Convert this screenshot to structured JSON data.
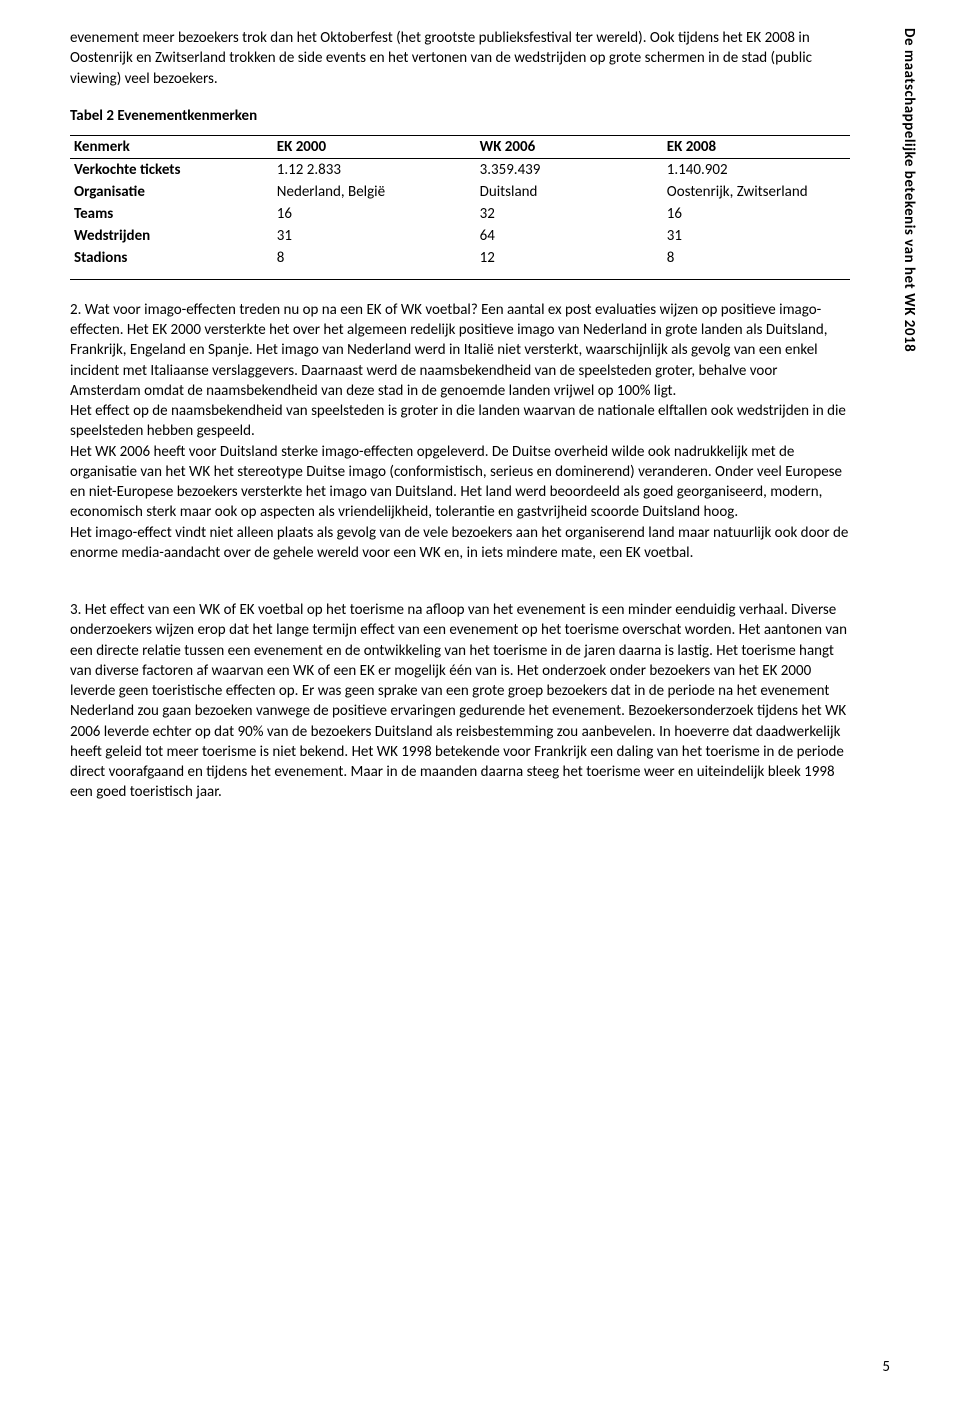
{
  "sidebar_vertical": "De maatschappelijke betekenis van het WK 2018",
  "intro": {
    "p1": "evenement meer bezoekers trok dan het Oktoberfest (het grootste publieksfestival ter wereld). Ook tijdens het EK 2008 in Oostenrijk en Zwitserland trokken de side events en het vertonen van de wedstrijden op grote schermen in de stad (public viewing) veel bezoekers."
  },
  "table": {
    "title": "Tabel 2  Evenementkenmerken",
    "columns": [
      "Kenmerk",
      "EK 2000",
      "WK 2006",
      "EK 2008"
    ],
    "rows": [
      [
        "Verkochte tickets",
        "1.12 2.833",
        "3.359.439",
        "1.140.902"
      ],
      [
        "Organisatie",
        "Nederland, België",
        "Duitsland",
        "Oostenrijk, Zwitserland"
      ],
      [
        "Teams",
        "16",
        "32",
        "16"
      ],
      [
        "Wedstrijden",
        "31",
        "64",
        "31"
      ],
      [
        "Stadions",
        "8",
        "12",
        "8"
      ]
    ]
  },
  "section2": {
    "p1": "2. Wat voor imago-effecten treden nu op na een EK of WK voetbal? Een aantal ex post evaluaties wijzen op positieve imago-effecten. Het EK 2000 versterkte het over het algemeen redelijk positieve imago van Nederland in grote landen als Duitsland, Frankrijk, Engeland en Spanje. Het imago van Nederland werd in Italië niet versterkt, waarschijnlijk als gevolg van een enkel incident met Italiaanse verslaggevers. Daarnaast werd de naamsbekendheid van de speelsteden groter, behalve voor Amsterdam omdat de naamsbekendheid van deze stad in de genoemde landen vrijwel op 100% ligt.",
    "p2": "Het effect op de naamsbekendheid van speelsteden is groter in die landen waarvan de nationale elftallen ook wedstrijden in die speelsteden hebben gespeeld.",
    "p3": "Het WK 2006 heeft voor Duitsland sterke imago-effecten opgeleverd. De Duitse overheid wilde ook nadrukkelijk met de organisatie van het WK het stereotype Duitse imago (conformistisch, serieus en dominerend) veranderen. Onder veel Europese en niet-Europese bezoekers versterkte het imago van Duitsland. Het land werd beoordeeld als goed georganiseerd, modern, economisch sterk maar ook op aspecten als vriendelijkheid, tolerantie en gastvrijheid scoorde Duitsland hoog.",
    "p4": "Het imago-effect vindt niet alleen plaats als gevolg van de vele bezoekers aan het organiserend land maar natuurlijk ook door de enorme media-aandacht over de gehele wereld voor een WK en, in iets mindere mate, een EK voetbal."
  },
  "section3": {
    "p1": "3. Het effect van een WK of EK voetbal op het toerisme na afloop van het evenement is een minder eenduidig verhaal. Diverse onderzoekers wijzen erop dat het lange termijn effect van een evenement op het toerisme overschat worden. Het aantonen van een directe relatie tussen een evenement en de ontwikkeling van het toerisme in de jaren daarna  is lastig. Het toerisme hangt van diverse factoren af waarvan een WK of een EK er mogelijk één van is. Het onderzoek onder bezoekers van het EK 2000 leverde geen toeristische effecten op. Er was geen sprake van een grote groep bezoekers dat in de periode na het evenement Nederland zou gaan bezoeken vanwege de positieve ervaringen gedurende het evenement. Bezoekersonderzoek tijdens het WK 2006 leverde echter op dat 90% van de bezoekers Duitsland als reisbestemming zou aanbevelen. In hoeverre dat daadwerkelijk heeft geleid tot meer toerisme is niet bekend. Het WK 1998 betekende voor Frankrijk een daling van het toerisme in de periode direct voorafgaand en tijdens het evenement. Maar in de maanden daarna steeg het toerisme weer en uiteindelijk bleek 1998 een goed toeristisch jaar."
  },
  "page_number": "5"
}
